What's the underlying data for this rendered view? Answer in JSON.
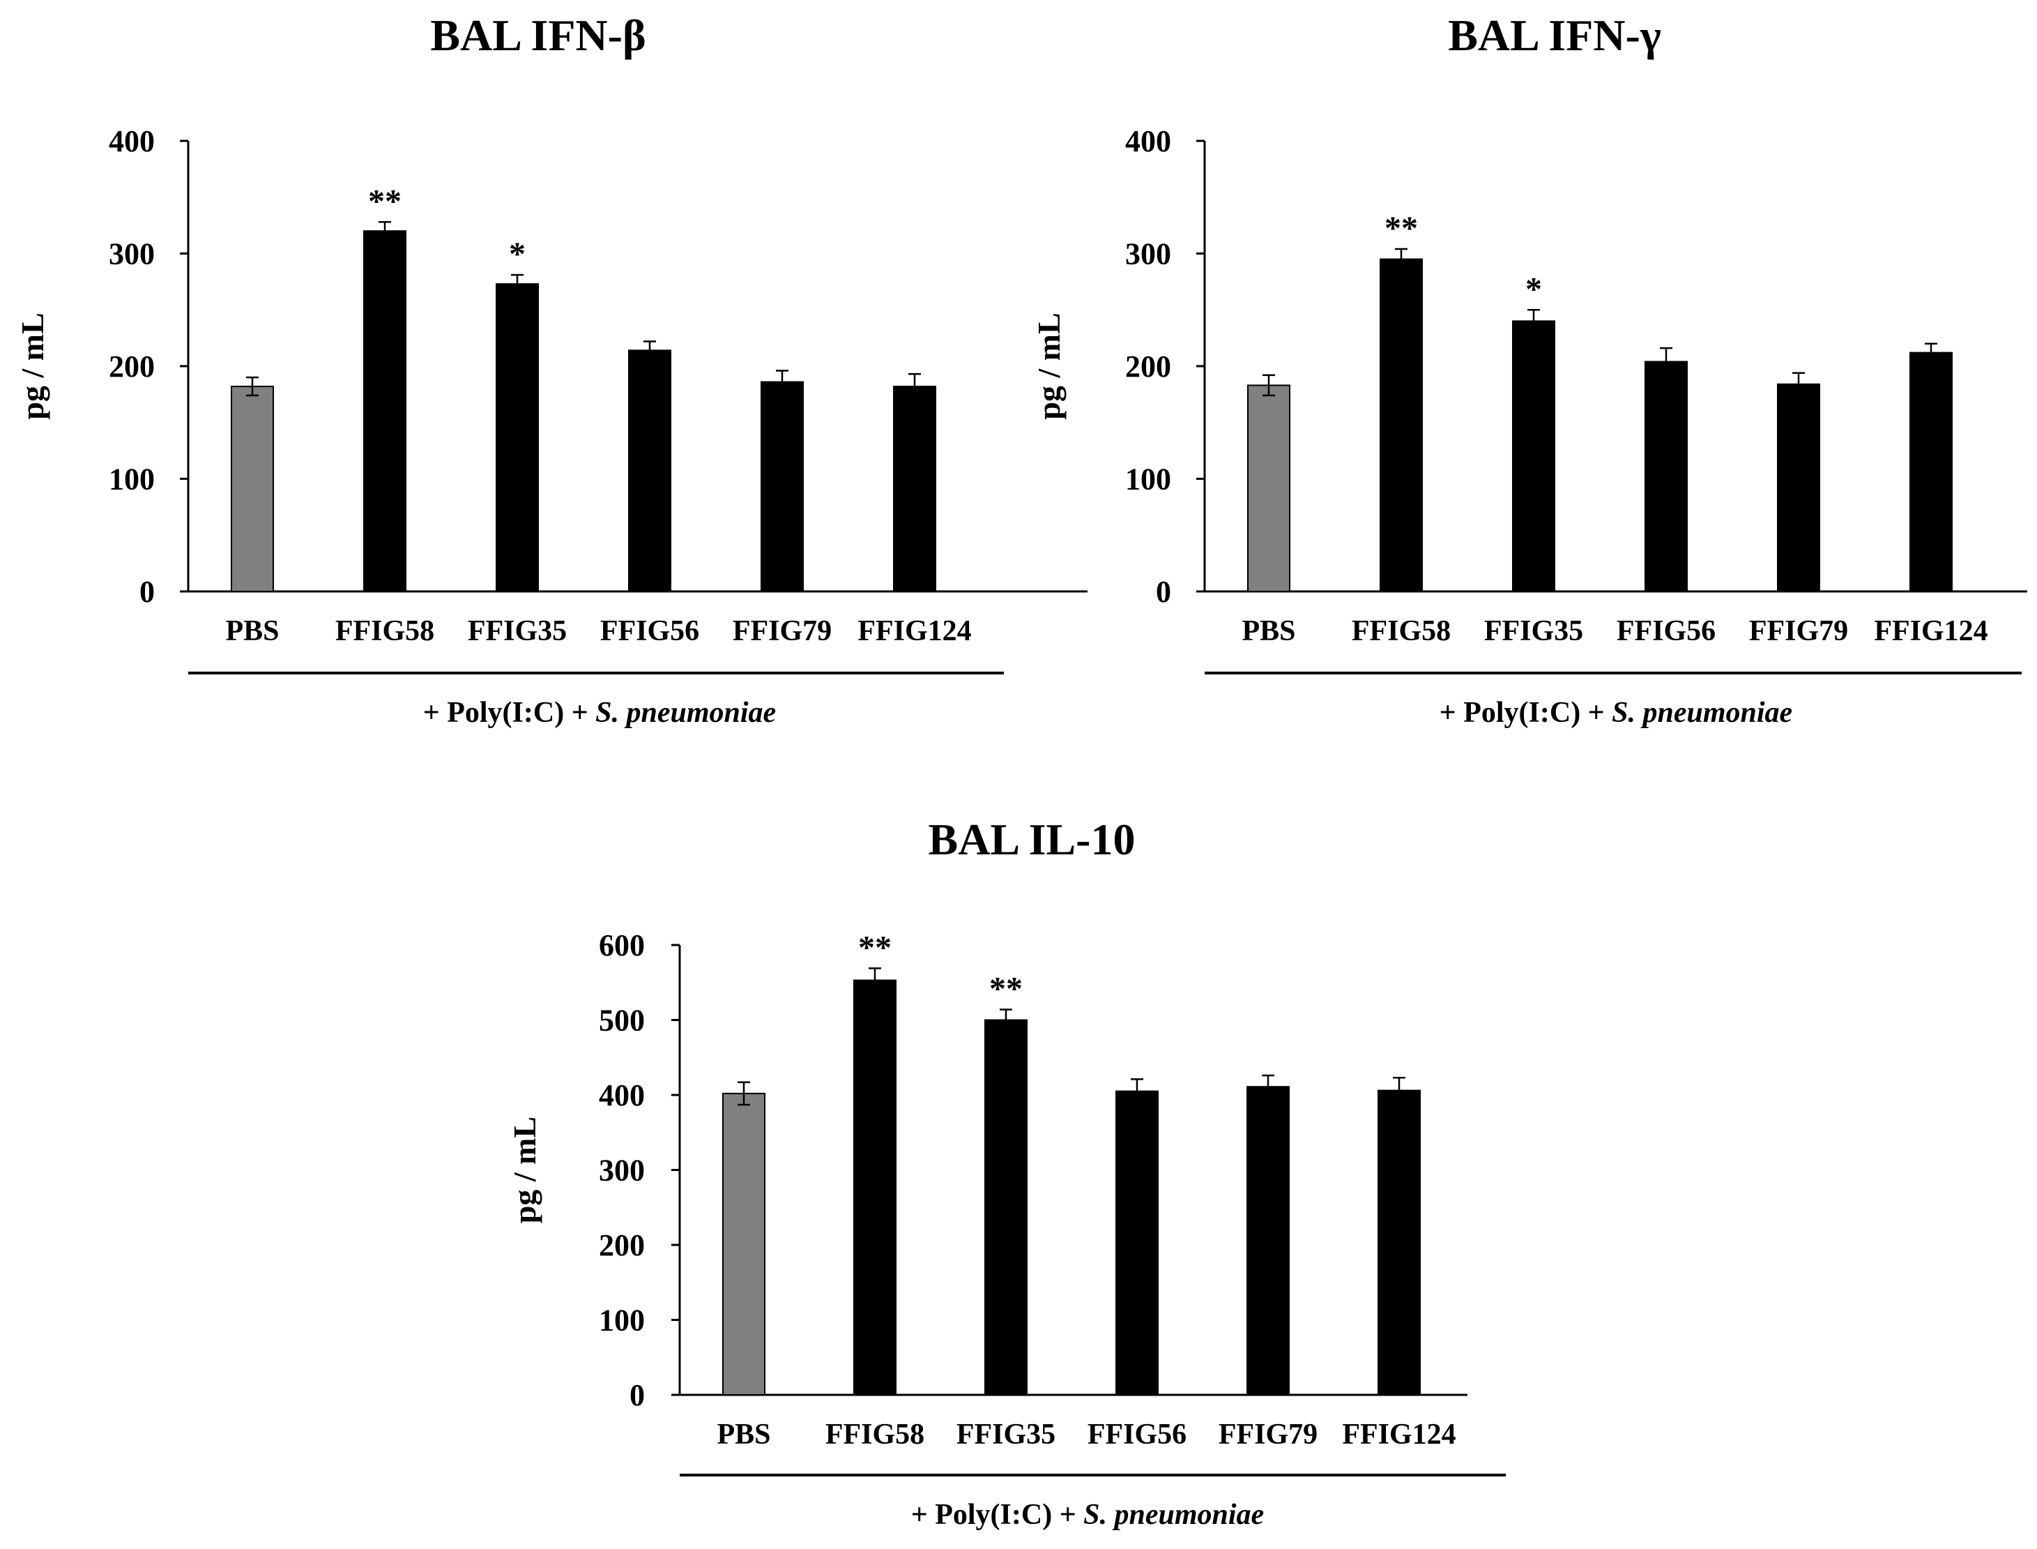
{
  "group_label_prefix": "+ Poly(I:C) + ",
  "group_label_species": "S. pneumoniae",
  "colors": {
    "control": "#808080",
    "treatment": "#000000",
    "axis": "#000000"
  },
  "chart_data": [
    {
      "type": "bar",
      "title": "BAL IFN-β",
      "ylabel": "pg / mL",
      "xlabel": "",
      "ylim": [
        0,
        400
      ],
      "yticks": [
        0,
        100,
        200,
        300,
        400
      ],
      "categories": [
        "PBS",
        "FFIG58",
        "FFIG35",
        "FFIG56",
        "FFIG79",
        "FFIG124"
      ],
      "values": [
        182,
        320,
        273,
        214,
        186,
        182
      ],
      "errors": [
        8,
        8,
        8,
        8,
        10,
        11
      ],
      "significance": [
        "",
        "**",
        "*",
        "",
        "",
        ""
      ],
      "group_label": "+ Poly(I:C) + S. pneumoniae",
      "legend": "none",
      "grid": false
    },
    {
      "type": "bar",
      "title": "BAL IFN-γ",
      "ylabel": "pg / mL",
      "xlabel": "",
      "ylim": [
        0,
        400
      ],
      "yticks": [
        0,
        100,
        200,
        300,
        400
      ],
      "categories": [
        "PBS",
        "FFIG58",
        "FFIG35",
        "FFIG56",
        "FFIG79",
        "FFIG124"
      ],
      "values": [
        183,
        295,
        240,
        204,
        184,
        212
      ],
      "errors": [
        9,
        9,
        10,
        12,
        10,
        8
      ],
      "significance": [
        "",
        "**",
        "*",
        "",
        "",
        ""
      ],
      "group_label": "+ Poly(I:C) + S. pneumoniae",
      "legend": "none",
      "grid": false
    },
    {
      "type": "bar",
      "title": "BAL IL-10",
      "ylabel": "pg / mL",
      "xlabel": "",
      "ylim": [
        0,
        600
      ],
      "yticks": [
        0,
        100,
        200,
        300,
        400,
        500,
        600
      ],
      "categories": [
        "PBS",
        "FFIG58",
        "FFIG35",
        "FFIG56",
        "FFIG79",
        "FFIG124"
      ],
      "values": [
        402,
        553,
        500,
        405,
        411,
        406
      ],
      "errors": [
        15,
        16,
        14,
        16,
        15,
        17
      ],
      "significance": [
        "",
        "**",
        "**",
        "",
        "",
        ""
      ],
      "group_label": "+ Poly(I:C) + S. pneumoniae",
      "legend": "none",
      "grid": false
    }
  ]
}
